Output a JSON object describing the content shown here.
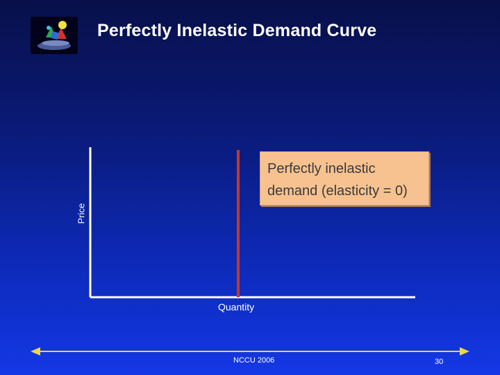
{
  "slide": {
    "title": "Perfectly Inelastic Demand Curve",
    "footer_text": "NCCU 2006",
    "page_number": "30"
  },
  "diagram": {
    "y_axis_label": "Price",
    "x_axis_label": "Quantity",
    "callout_line1": "Perfectly inelastic",
    "callout_line2": "demand (elasticity = 0)",
    "demand_line_color": "#c0392b",
    "axis_color": "#ffffff"
  },
  "colors": {
    "callout_fill": "#f7c290",
    "footer_line": "#e8d84a"
  }
}
